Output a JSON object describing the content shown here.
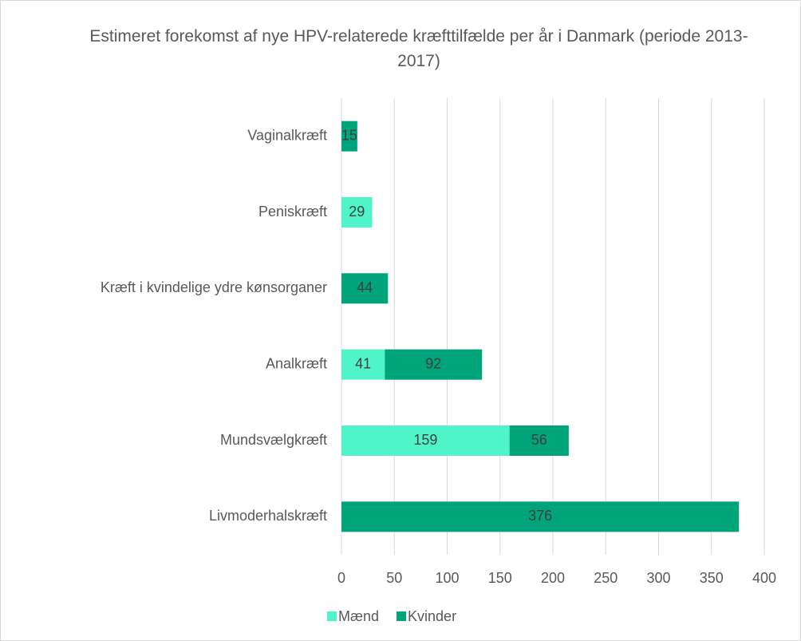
{
  "chart_data": {
    "type": "stacked_barh",
    "title": "Estimeret forekomst af nye HPV-relaterede kræfttilfælde per år i Danmark (periode 2013-2017)",
    "categories": [
      "Vaginalkræft",
      "Peniskræft",
      "Kræft i kvindelige ydre kønsorganer",
      "Analkræft",
      "Mundsvælgkræft",
      "Livmoderhalskræft"
    ],
    "series": [
      {
        "name": "Mænd",
        "color": "#4ff5c9",
        "values": [
          null,
          29,
          null,
          41,
          159,
          null
        ]
      },
      {
        "name": "Kvinder",
        "color": "#00a47a",
        "values": [
          15,
          null,
          44,
          92,
          56,
          376
        ]
      }
    ],
    "xlim": [
      0,
      400
    ],
    "xticks": [
      0,
      50,
      100,
      150,
      200,
      250,
      300,
      350,
      400
    ],
    "grid": true,
    "legend": "bottom"
  }
}
